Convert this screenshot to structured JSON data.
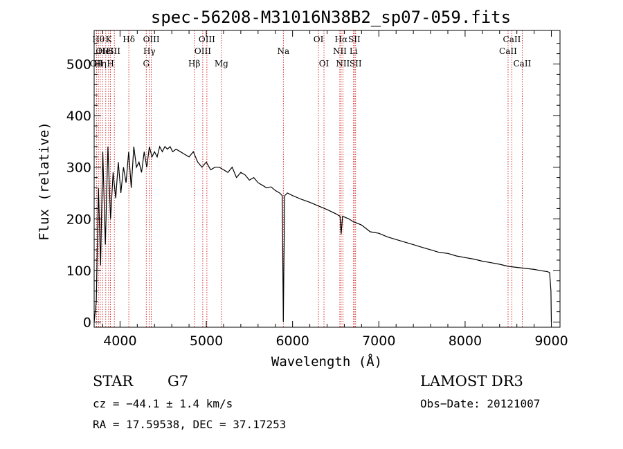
{
  "chart_data": {
    "type": "line",
    "title": "spec-56208-M31016N38B2_sp07-059.fits",
    "xlabel": "Wavelength (Å)",
    "ylabel": "Flux (relative)",
    "xlim": [
      3700,
      9100
    ],
    "ylim": [
      -10,
      565
    ],
    "xticks": [
      4000,
      5000,
      6000,
      7000,
      8000,
      9000
    ],
    "xtick_labels": [
      "4000",
      "5000",
      "6000",
      "7000",
      "8000",
      "9000"
    ],
    "yticks": [
      0,
      100,
      200,
      300,
      400,
      500
    ],
    "ytick_labels": [
      "0",
      "100",
      "200",
      "300",
      "400",
      "500"
    ],
    "series": [
      {
        "name": "spectrum",
        "x": [
          3700,
          3725,
          3750,
          3775,
          3800,
          3830,
          3860,
          3890,
          3920,
          3950,
          3980,
          4010,
          4040,
          4070,
          4100,
          4130,
          4160,
          4190,
          4220,
          4250,
          4280,
          4310,
          4340,
          4370,
          4400,
          4430,
          4460,
          4490,
          4520,
          4550,
          4580,
          4610,
          4650,
          4700,
          4750,
          4800,
          4850,
          4900,
          4950,
          5000,
          5050,
          5100,
          5150,
          5200,
          5250,
          5300,
          5350,
          5400,
          5450,
          5500,
          5550,
          5600,
          5650,
          5700,
          5750,
          5800,
          5850,
          5880,
          5893,
          5900,
          5910,
          5940,
          6000,
          6100,
          6200,
          6300,
          6400,
          6500,
          6550,
          6563,
          6580,
          6650,
          6700,
          6800,
          6900,
          7000,
          7100,
          7200,
          7300,
          7400,
          7500,
          7600,
          7700,
          7800,
          7900,
          8000,
          8100,
          8200,
          8300,
          8400,
          8500,
          8600,
          8700,
          8800,
          8900,
          8950,
          8980,
          8995,
          9000
        ],
        "y": [
          0,
          40,
          260,
          110,
          330,
          150,
          340,
          200,
          290,
          240,
          310,
          250,
          300,
          270,
          330,
          260,
          340,
          300,
          310,
          290,
          330,
          300,
          340,
          320,
          330,
          320,
          340,
          330,
          340,
          335,
          340,
          330,
          335,
          330,
          325,
          320,
          330,
          310,
          300,
          310,
          295,
          300,
          300,
          295,
          290,
          300,
          280,
          290,
          285,
          275,
          280,
          270,
          265,
          260,
          262,
          255,
          250,
          245,
          0,
          120,
          245,
          250,
          245,
          238,
          232,
          225,
          218,
          210,
          205,
          170,
          205,
          200,
          195,
          188,
          175,
          172,
          165,
          160,
          155,
          150,
          145,
          140,
          135,
          133,
          128,
          125,
          122,
          118,
          115,
          112,
          108,
          106,
          104,
          102,
          99,
          98,
          96,
          60,
          0
        ]
      }
    ],
    "spectral_lines": [
      {
        "wavelength": 3727,
        "label": "OII",
        "row": 2
      },
      {
        "wavelength": 3750,
        "label": "Hθ",
        "row": 0
      },
      {
        "wavelength": 3771,
        "label": "Hη",
        "row": 2
      },
      {
        "wavelength": 3797,
        "label": "OII",
        "row": 1
      },
      {
        "wavelength": 3835,
        "label": "HeI",
        "row": 1
      },
      {
        "wavelength": 3868,
        "label": "K",
        "row": 0
      },
      {
        "wavelength": 3889,
        "label": "H",
        "row": 2
      },
      {
        "wavelength": 3934,
        "label": "SII",
        "row": 1
      },
      {
        "wavelength": 4102,
        "label": "Hδ",
        "row": 0
      },
      {
        "wavelength": 4304,
        "label": "G",
        "row": 2
      },
      {
        "wavelength": 4340,
        "label": "Hγ",
        "row": 1
      },
      {
        "wavelength": 4363,
        "label": "OIII",
        "row": 0
      },
      {
        "wavelength": 4861,
        "label": "Hβ",
        "row": 2
      },
      {
        "wavelength": 4959,
        "label": "OIII",
        "row": 1
      },
      {
        "wavelength": 5007,
        "label": "OIII",
        "row": 0
      },
      {
        "wavelength": 5175,
        "label": "Mg",
        "row": 2
      },
      {
        "wavelength": 5893,
        "label": "Na",
        "row": 1
      },
      {
        "wavelength": 6300,
        "label": "OI",
        "row": 0
      },
      {
        "wavelength": 6364,
        "label": "OI",
        "row": 2
      },
      {
        "wavelength": 6548,
        "label": "NII",
        "row": 1
      },
      {
        "wavelength": 6563,
        "label": "Hα",
        "row": 0
      },
      {
        "wavelength": 6583,
        "label": "NII",
        "row": 2
      },
      {
        "wavelength": 6707,
        "label": "Li",
        "row": 1
      },
      {
        "wavelength": 6716,
        "label": "SII",
        "row": 0
      },
      {
        "wavelength": 6731,
        "label": "SII",
        "row": 2
      },
      {
        "wavelength": 8498,
        "label": "CaII",
        "row": 1
      },
      {
        "wavelength": 8542,
        "label": "CaII",
        "row": 0
      },
      {
        "wavelength": 8662,
        "label": "CaII",
        "row": 2
      }
    ],
    "colors": {
      "spectrum": "#000000",
      "lines": "#cc0000"
    }
  },
  "info": {
    "class": "STAR",
    "subclass": "G7",
    "survey": "LAMOST DR3",
    "cz": "cz = −44.1 ± 1.4 km/s",
    "obs_date": "Obs−Date: 20121007",
    "coords": "RA =  17.59538, DEC =  37.17253"
  }
}
